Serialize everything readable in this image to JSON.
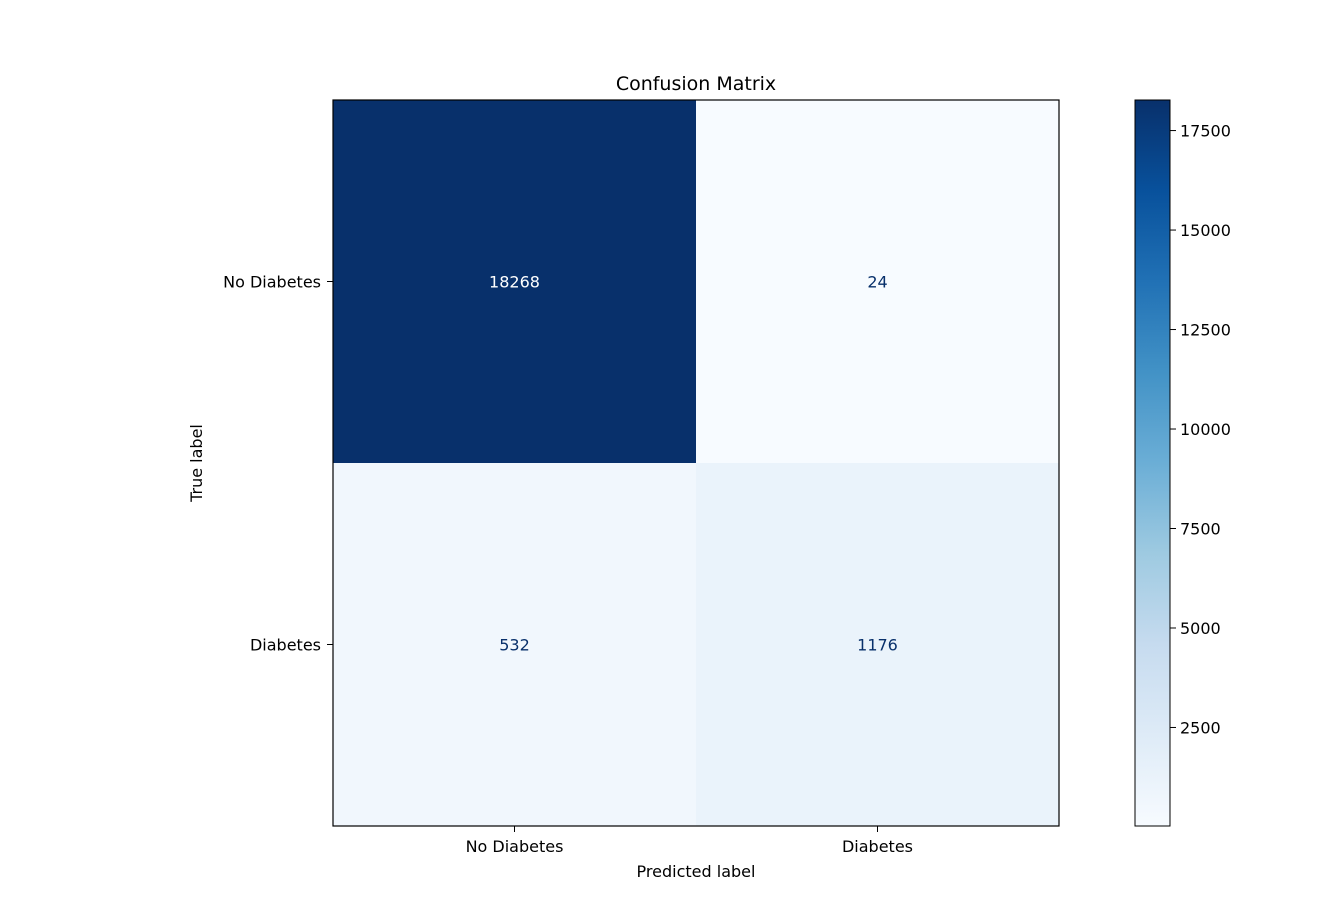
{
  "chart_data": {
    "type": "heatmap",
    "title": "Confusion Matrix",
    "xlabel": "Predicted label",
    "ylabel": "True label",
    "x_categories": [
      "No Diabetes",
      "Diabetes"
    ],
    "y_categories": [
      "No Diabetes",
      "Diabetes"
    ],
    "values": [
      [
        18268,
        24
      ],
      [
        532,
        1176
      ]
    ],
    "colormap": "Blues",
    "colorbar": {
      "range": [
        24,
        18268
      ],
      "ticks": [
        2500,
        5000,
        7500,
        10000,
        12500,
        15000,
        17500
      ],
      "tick_labels": [
        "2500",
        "5000",
        "7500",
        "10000",
        "12500",
        "15000",
        "17500"
      ]
    },
    "grid": false
  }
}
